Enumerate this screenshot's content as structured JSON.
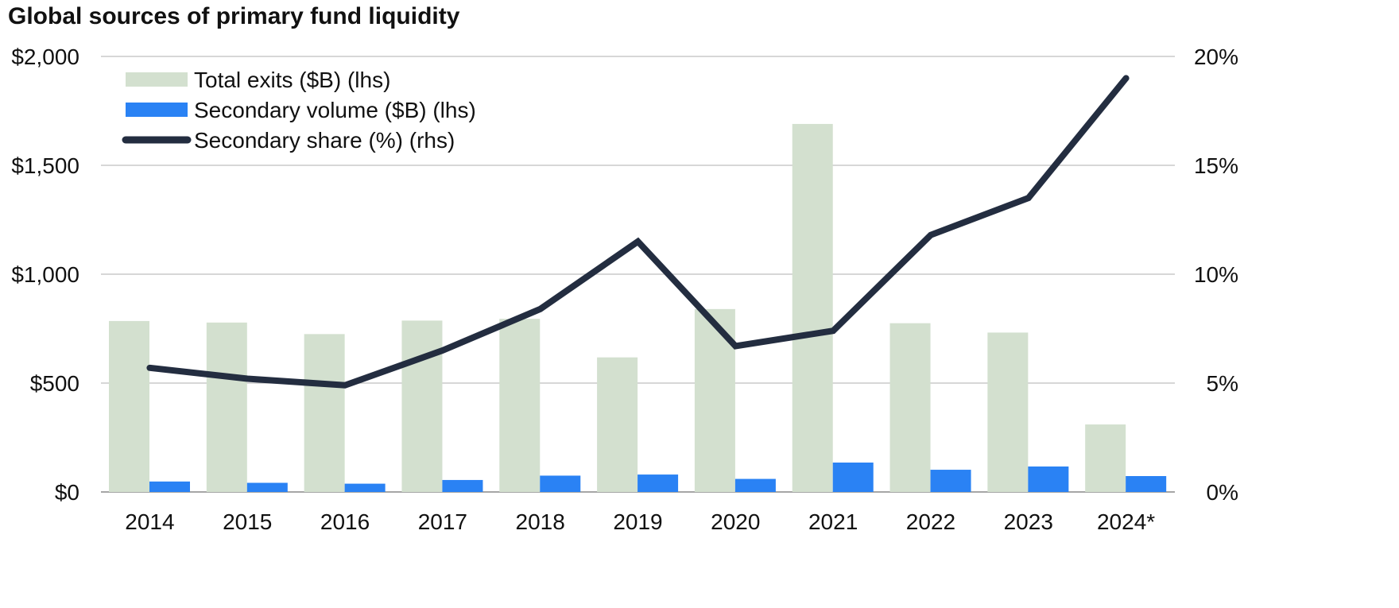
{
  "chart_data": {
    "type": "bar",
    "title": "Global sources of primary fund liquidity",
    "categories": [
      "2014",
      "2015",
      "2016",
      "2017",
      "2018",
      "2019",
      "2020",
      "2021",
      "2022",
      "2023",
      "2024*"
    ],
    "series": [
      {
        "name": "Total exits ($B) (lhs)",
        "type": "bar",
        "axis": "left",
        "color": "#d3e0cf",
        "values": [
          785,
          778,
          725,
          787,
          795,
          618,
          840,
          1690,
          775,
          732,
          310
        ]
      },
      {
        "name": "Secondary volume ($B) (lhs)",
        "type": "bar",
        "axis": "left",
        "color": "#2a82f4",
        "values": [
          48,
          42,
          38,
          55,
          75,
          80,
          60,
          135,
          102,
          117,
          73
        ]
      },
      {
        "name": "Secondary share (%) (rhs)",
        "type": "line",
        "axis": "right",
        "color": "#232d40",
        "values": [
          5.7,
          5.2,
          4.9,
          6.5,
          8.4,
          11.5,
          6.7,
          7.4,
          11.8,
          13.5,
          19.0
        ]
      }
    ],
    "left_axis": {
      "ylim": [
        0,
        2000
      ],
      "ticks": [
        0,
        500,
        1000,
        1500,
        2000
      ],
      "tick_labels": [
        "$0",
        "$500",
        "$1,000",
        "$1,500",
        "$2,000"
      ]
    },
    "right_axis": {
      "ylim": [
        0,
        20
      ],
      "ticks": [
        0,
        5,
        10,
        15,
        20
      ],
      "tick_labels": [
        "0%",
        "5%",
        "10%",
        "15%",
        "20%"
      ]
    },
    "grid": true,
    "legend_position": "top-left"
  }
}
